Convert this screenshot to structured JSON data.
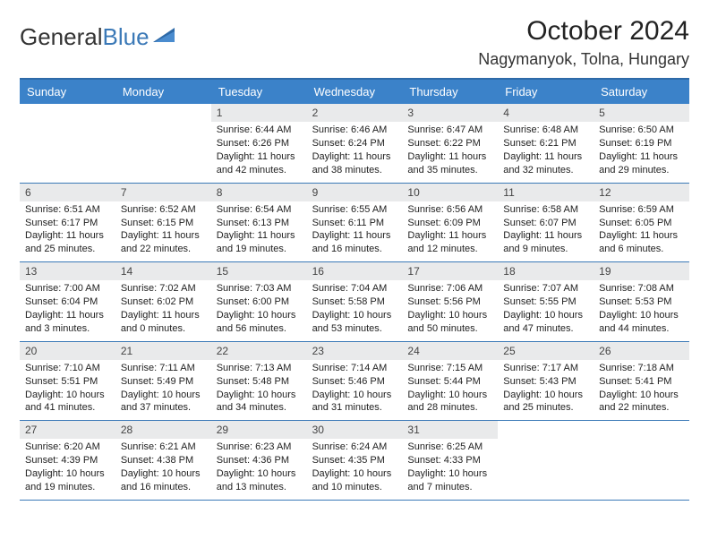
{
  "brand": {
    "name_part1": "General",
    "name_part2": "Blue"
  },
  "colors": {
    "header_bg": "#3b82c9",
    "header_text": "#ffffff",
    "border": "#3b79b7",
    "daynum_bg": "#e9eaeb",
    "text": "#222222",
    "brand_blue": "#3b79b7"
  },
  "typography": {
    "month_fontsize": 30,
    "location_fontsize": 18,
    "dayheader_fontsize": 13,
    "cell_fontsize": 11
  },
  "calendar": {
    "month_title": "October 2024",
    "location": "Nagymanyok, Tolna, Hungary",
    "day_names": [
      "Sunday",
      "Monday",
      "Tuesday",
      "Wednesday",
      "Thursday",
      "Friday",
      "Saturday"
    ],
    "weeks": [
      [
        {
          "day": "",
          "sunrise": "",
          "sunset": "",
          "daylight": ""
        },
        {
          "day": "",
          "sunrise": "",
          "sunset": "",
          "daylight": ""
        },
        {
          "day": "1",
          "sunrise": "Sunrise: 6:44 AM",
          "sunset": "Sunset: 6:26 PM",
          "daylight": "Daylight: 11 hours and 42 minutes."
        },
        {
          "day": "2",
          "sunrise": "Sunrise: 6:46 AM",
          "sunset": "Sunset: 6:24 PM",
          "daylight": "Daylight: 11 hours and 38 minutes."
        },
        {
          "day": "3",
          "sunrise": "Sunrise: 6:47 AM",
          "sunset": "Sunset: 6:22 PM",
          "daylight": "Daylight: 11 hours and 35 minutes."
        },
        {
          "day": "4",
          "sunrise": "Sunrise: 6:48 AM",
          "sunset": "Sunset: 6:21 PM",
          "daylight": "Daylight: 11 hours and 32 minutes."
        },
        {
          "day": "5",
          "sunrise": "Sunrise: 6:50 AM",
          "sunset": "Sunset: 6:19 PM",
          "daylight": "Daylight: 11 hours and 29 minutes."
        }
      ],
      [
        {
          "day": "6",
          "sunrise": "Sunrise: 6:51 AM",
          "sunset": "Sunset: 6:17 PM",
          "daylight": "Daylight: 11 hours and 25 minutes."
        },
        {
          "day": "7",
          "sunrise": "Sunrise: 6:52 AM",
          "sunset": "Sunset: 6:15 PM",
          "daylight": "Daylight: 11 hours and 22 minutes."
        },
        {
          "day": "8",
          "sunrise": "Sunrise: 6:54 AM",
          "sunset": "Sunset: 6:13 PM",
          "daylight": "Daylight: 11 hours and 19 minutes."
        },
        {
          "day": "9",
          "sunrise": "Sunrise: 6:55 AM",
          "sunset": "Sunset: 6:11 PM",
          "daylight": "Daylight: 11 hours and 16 minutes."
        },
        {
          "day": "10",
          "sunrise": "Sunrise: 6:56 AM",
          "sunset": "Sunset: 6:09 PM",
          "daylight": "Daylight: 11 hours and 12 minutes."
        },
        {
          "day": "11",
          "sunrise": "Sunrise: 6:58 AM",
          "sunset": "Sunset: 6:07 PM",
          "daylight": "Daylight: 11 hours and 9 minutes."
        },
        {
          "day": "12",
          "sunrise": "Sunrise: 6:59 AM",
          "sunset": "Sunset: 6:05 PM",
          "daylight": "Daylight: 11 hours and 6 minutes."
        }
      ],
      [
        {
          "day": "13",
          "sunrise": "Sunrise: 7:00 AM",
          "sunset": "Sunset: 6:04 PM",
          "daylight": "Daylight: 11 hours and 3 minutes."
        },
        {
          "day": "14",
          "sunrise": "Sunrise: 7:02 AM",
          "sunset": "Sunset: 6:02 PM",
          "daylight": "Daylight: 11 hours and 0 minutes."
        },
        {
          "day": "15",
          "sunrise": "Sunrise: 7:03 AM",
          "sunset": "Sunset: 6:00 PM",
          "daylight": "Daylight: 10 hours and 56 minutes."
        },
        {
          "day": "16",
          "sunrise": "Sunrise: 7:04 AM",
          "sunset": "Sunset: 5:58 PM",
          "daylight": "Daylight: 10 hours and 53 minutes."
        },
        {
          "day": "17",
          "sunrise": "Sunrise: 7:06 AM",
          "sunset": "Sunset: 5:56 PM",
          "daylight": "Daylight: 10 hours and 50 minutes."
        },
        {
          "day": "18",
          "sunrise": "Sunrise: 7:07 AM",
          "sunset": "Sunset: 5:55 PM",
          "daylight": "Daylight: 10 hours and 47 minutes."
        },
        {
          "day": "19",
          "sunrise": "Sunrise: 7:08 AM",
          "sunset": "Sunset: 5:53 PM",
          "daylight": "Daylight: 10 hours and 44 minutes."
        }
      ],
      [
        {
          "day": "20",
          "sunrise": "Sunrise: 7:10 AM",
          "sunset": "Sunset: 5:51 PM",
          "daylight": "Daylight: 10 hours and 41 minutes."
        },
        {
          "day": "21",
          "sunrise": "Sunrise: 7:11 AM",
          "sunset": "Sunset: 5:49 PM",
          "daylight": "Daylight: 10 hours and 37 minutes."
        },
        {
          "day": "22",
          "sunrise": "Sunrise: 7:13 AM",
          "sunset": "Sunset: 5:48 PM",
          "daylight": "Daylight: 10 hours and 34 minutes."
        },
        {
          "day": "23",
          "sunrise": "Sunrise: 7:14 AM",
          "sunset": "Sunset: 5:46 PM",
          "daylight": "Daylight: 10 hours and 31 minutes."
        },
        {
          "day": "24",
          "sunrise": "Sunrise: 7:15 AM",
          "sunset": "Sunset: 5:44 PM",
          "daylight": "Daylight: 10 hours and 28 minutes."
        },
        {
          "day": "25",
          "sunrise": "Sunrise: 7:17 AM",
          "sunset": "Sunset: 5:43 PM",
          "daylight": "Daylight: 10 hours and 25 minutes."
        },
        {
          "day": "26",
          "sunrise": "Sunrise: 7:18 AM",
          "sunset": "Sunset: 5:41 PM",
          "daylight": "Daylight: 10 hours and 22 minutes."
        }
      ],
      [
        {
          "day": "27",
          "sunrise": "Sunrise: 6:20 AM",
          "sunset": "Sunset: 4:39 PM",
          "daylight": "Daylight: 10 hours and 19 minutes."
        },
        {
          "day": "28",
          "sunrise": "Sunrise: 6:21 AM",
          "sunset": "Sunset: 4:38 PM",
          "daylight": "Daylight: 10 hours and 16 minutes."
        },
        {
          "day": "29",
          "sunrise": "Sunrise: 6:23 AM",
          "sunset": "Sunset: 4:36 PM",
          "daylight": "Daylight: 10 hours and 13 minutes."
        },
        {
          "day": "30",
          "sunrise": "Sunrise: 6:24 AM",
          "sunset": "Sunset: 4:35 PM",
          "daylight": "Daylight: 10 hours and 10 minutes."
        },
        {
          "day": "31",
          "sunrise": "Sunrise: 6:25 AM",
          "sunset": "Sunset: 4:33 PM",
          "daylight": "Daylight: 10 hours and 7 minutes."
        },
        {
          "day": "",
          "sunrise": "",
          "sunset": "",
          "daylight": ""
        },
        {
          "day": "",
          "sunrise": "",
          "sunset": "",
          "daylight": ""
        }
      ]
    ]
  }
}
